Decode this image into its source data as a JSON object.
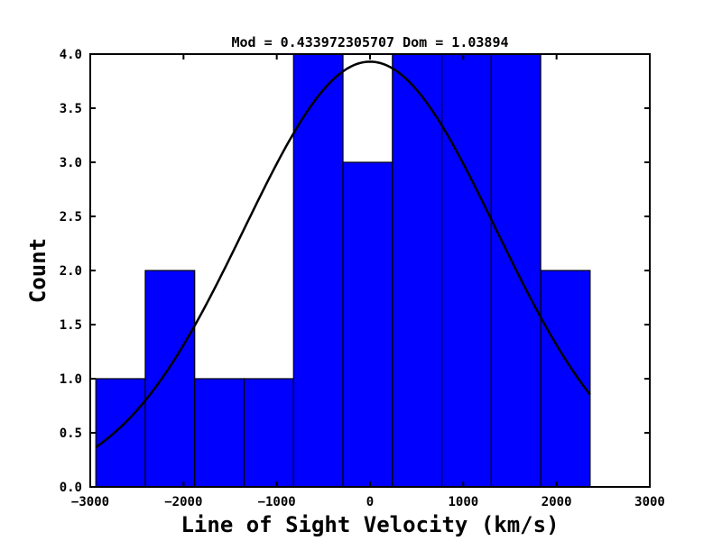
{
  "chart_data": {
    "type": "bar",
    "title": "Mod = 0.433972305707 Dom = 1.03894",
    "xlabel": "Line of Sight Velocity (km/s)",
    "ylabel": "Count",
    "xlim": [
      -3000,
      3000
    ],
    "ylim": [
      0,
      4.0
    ],
    "xticks": [
      -3000,
      -2000,
      -1000,
      0,
      1000,
      2000,
      3000
    ],
    "xtick_labels": [
      "−3000",
      "−2000",
      "−1000",
      "0",
      "1000",
      "2000",
      "3000"
    ],
    "yticks": [
      0,
      0.5,
      1,
      1.5,
      2,
      2.5,
      3,
      3.5,
      4
    ],
    "ytick_labels": [
      "0.0",
      "0.5",
      "1.0",
      "1.5",
      "2.0",
      "2.5",
      "3.0",
      "3.5",
      "4.0"
    ],
    "grid": false,
    "bar_color": "#0000ff",
    "bins": [
      {
        "left": -2940,
        "right": -2410,
        "count": 1
      },
      {
        "left": -2410,
        "right": -1880,
        "count": 2
      },
      {
        "left": -1880,
        "right": -1350,
        "count": 1
      },
      {
        "left": -1350,
        "right": -820,
        "count": 1
      },
      {
        "left": -820,
        "right": -290,
        "count": 4
      },
      {
        "left": -290,
        "right": 240,
        "count": 3
      },
      {
        "left": 240,
        "right": 770,
        "count": 4
      },
      {
        "left": 770,
        "right": 1300,
        "count": 4
      },
      {
        "left": 1300,
        "right": 1830,
        "count": 4
      },
      {
        "left": 1830,
        "right": 2360,
        "count": 2
      }
    ],
    "fit_curve": {
      "type": "gaussian",
      "color": "#000000",
      "amplitude": 3.93,
      "mean": 0,
      "sigma": 1350,
      "x_range": [
        -2940,
        2360
      ]
    }
  }
}
